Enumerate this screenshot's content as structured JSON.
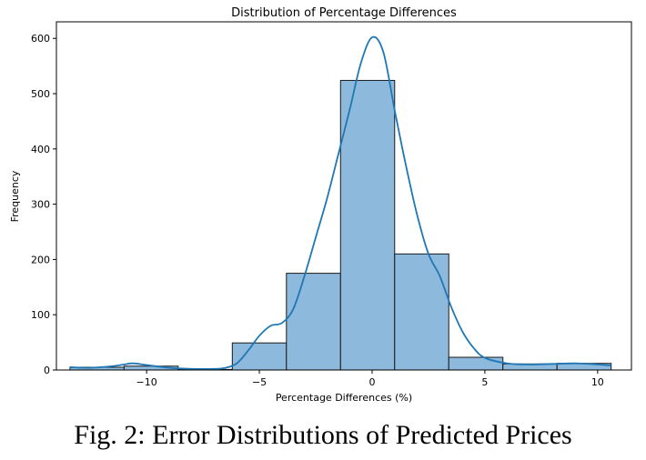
{
  "caption": "Fig. 2: Error Distributions of Predicted Prices",
  "chart_data": {
    "type": "bar",
    "title": "Distribution of Percentage Differences",
    "xlabel": "Percentage Differences (%)",
    "ylabel": "Frequency",
    "xlim": [
      -14,
      11.5
    ],
    "ylim": [
      0,
      630
    ],
    "xticks": [
      -10,
      -5,
      0,
      5,
      10
    ],
    "xtick_labels": [
      "−10",
      "−5",
      "0",
      "5",
      "10"
    ],
    "yticks": [
      0,
      100,
      200,
      300,
      400,
      500,
      600
    ],
    "bins": [
      {
        "x0": -13.4,
        "x1": -11.0,
        "count": 5
      },
      {
        "x0": -11.0,
        "x1": -8.6,
        "count": 7
      },
      {
        "x0": -8.6,
        "x1": -6.2,
        "count": 1
      },
      {
        "x0": -6.2,
        "x1": -3.8,
        "count": 49
      },
      {
        "x0": -3.8,
        "x1": -1.4,
        "count": 175
      },
      {
        "x0": -1.4,
        "x1": 1.0,
        "count": 524
      },
      {
        "x0": 1.0,
        "x1": 3.4,
        "count": 210
      },
      {
        "x0": 3.4,
        "x1": 5.8,
        "count": 23
      },
      {
        "x0": 5.8,
        "x1": 8.2,
        "count": 11
      },
      {
        "x0": 8.2,
        "x1": 10.6,
        "count": 12
      }
    ],
    "kde": {
      "x": [
        -13.4,
        -12.5,
        -11.5,
        -11.0,
        -10.6,
        -10.0,
        -9.0,
        -8.0,
        -7.0,
        -6.5,
        -6.0,
        -5.5,
        -5.0,
        -4.5,
        -4.0,
        -3.5,
        -3.0,
        -2.5,
        -2.0,
        -1.5,
        -1.0,
        -0.5,
        0.0,
        0.5,
        1.0,
        1.5,
        2.0,
        2.5,
        3.0,
        3.5,
        4.0,
        4.5,
        5.0,
        6.0,
        7.0,
        8.0,
        9.0,
        10.0,
        10.6
      ],
      "y": [
        5,
        4,
        7,
        10,
        12,
        9,
        4,
        2,
        2,
        4,
        12,
        35,
        62,
        80,
        85,
        110,
        170,
        240,
        310,
        390,
        470,
        555,
        602,
        575,
        470,
        370,
        280,
        210,
        170,
        115,
        70,
        40,
        22,
        12,
        10,
        11,
        12,
        10,
        8
      ]
    },
    "bar_color": "#8db9dd",
    "bar_edge_color": "#1a1a1a",
    "kde_color": "#1f77b4",
    "grid": false
  }
}
